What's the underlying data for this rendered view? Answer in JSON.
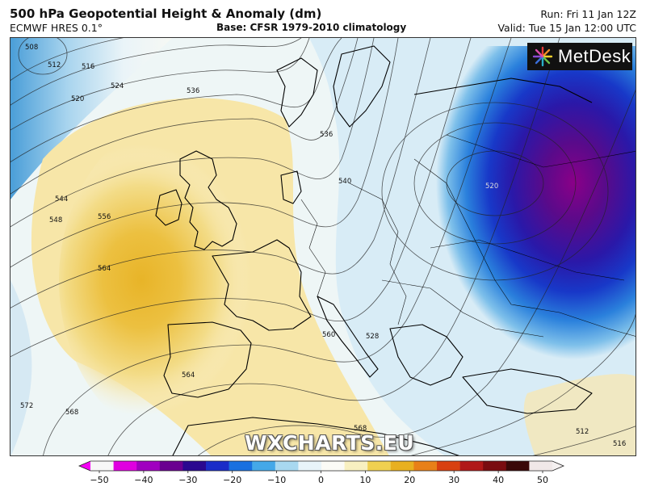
{
  "header": {
    "title": "500 hPa Geopotential Height & Anomaly (dm)",
    "model": "ECMWF HRES 0.1°",
    "base": "Base: CFSR 1979-2010 climatology",
    "run": "Run: Fri 11 Jan 12Z",
    "valid": "Valid: Tue 15 Jan 12:00 UTC"
  },
  "logo": {
    "text": "MetDesk",
    "icon": "metdesk-burst-icon"
  },
  "watermark": "WXCHARTS.EU",
  "contour_labels": [
    "508",
    "512",
    "516",
    "520",
    "524",
    "536",
    "544",
    "548",
    "556",
    "564",
    "572",
    "568",
    "540",
    "536",
    "528",
    "560",
    "564",
    "568",
    "520",
    "512",
    "516"
  ],
  "colorbar": {
    "ticks": [
      "−50",
      "−40",
      "−30",
      "−20",
      "−10",
      "0",
      "10",
      "20",
      "30",
      "40",
      "50"
    ],
    "colors": [
      "#f7f7f7",
      "#e000e0",
      "#a000c0",
      "#6a0090",
      "#2a0890",
      "#1a2cc8",
      "#1870e0",
      "#44a8e8",
      "#a8d8f0",
      "#e8f4fa",
      "#fbfbf6",
      "#f8f0c0",
      "#f0d050",
      "#e8b020",
      "#e88018",
      "#d84010",
      "#b01818",
      "#7a0c10",
      "#3a0808",
      "#f0e8e8"
    ]
  }
}
